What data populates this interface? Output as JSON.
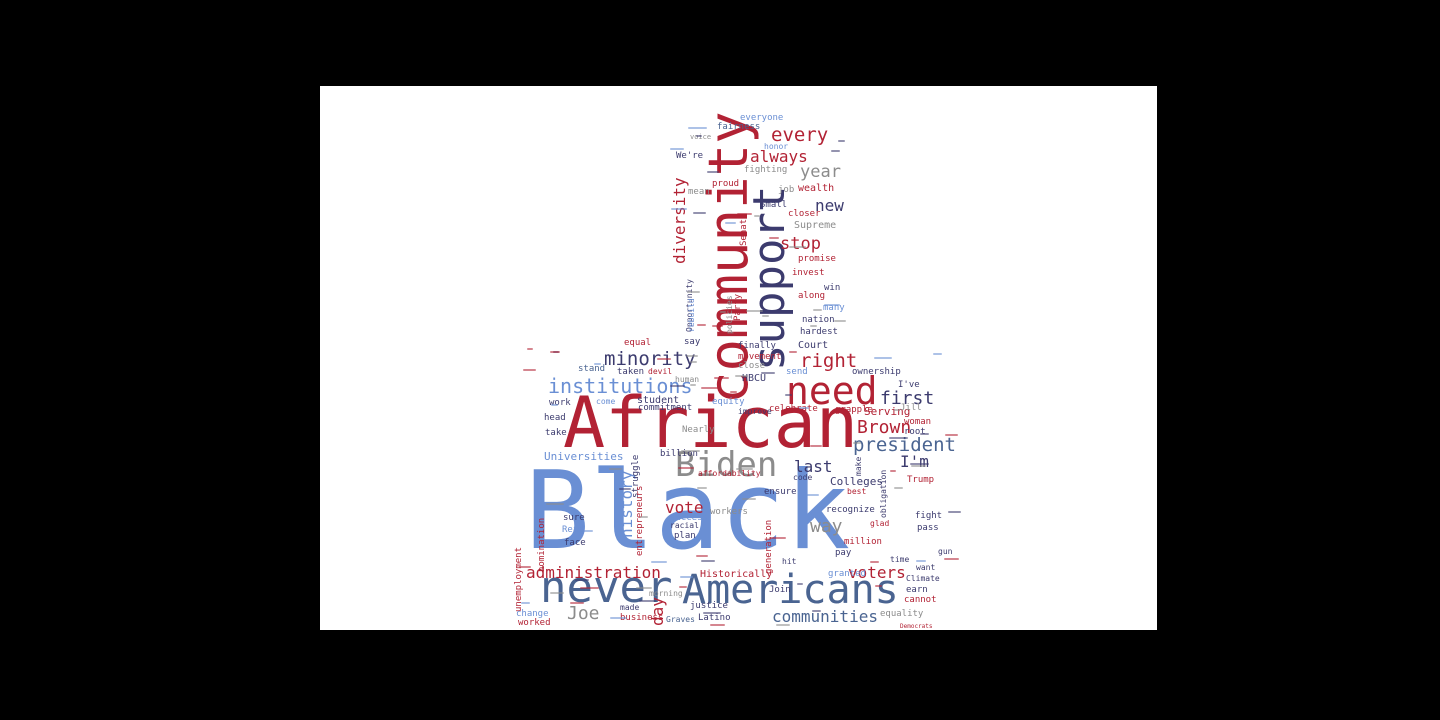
{
  "words": {
    "black": "Black",
    "african": "African",
    "community": "community",
    "support": "support",
    "never": "never",
    "americans": "Americans",
    "biden": "Biden",
    "need": "need",
    "institutions": "institutions",
    "minority": "minority",
    "president": "president",
    "brown": "Brown",
    "first": "first",
    "right": "right",
    "every": "every",
    "always": "always",
    "year": "year",
    "new": "new",
    "stop": "stop",
    "diversity": "diversity",
    "administration": "administration",
    "voters": "voters",
    "communities": "communities",
    "joe": "Joe",
    "day": "day",
    "history": "history",
    "vote": "vote",
    "way": "way",
    "last": "last",
    "im": "I'm",
    "colleges": "Colleges",
    "universities": "Universities",
    "historically": "Historically",
    "serving": "Serving",
    "hbcu": "HBCU",
    "court": "Court",
    "supreme": "Supreme",
    "small": "Small",
    "senate": "Senate",
    "wealth": "wealth",
    "job": "job",
    "proud": "proud",
    "fighting": "fighting",
    "fairness": "fairness",
    "everyone": "everyone",
    "were": "We're",
    "mean": "mean",
    "honor": "honor",
    "voice": "voice",
    "closer": "closer",
    "promise": "promise",
    "invest": "invest",
    "win": "win",
    "along": "along",
    "hardest": "hardest",
    "nation": "nation",
    "many": "many",
    "finally": "finally",
    "movement": "movement",
    "close": "close",
    "send": "send",
    "ownership": "ownership",
    "ive": "I've",
    "jill": "Jill",
    "root": "root",
    "woman": "woman",
    "grapple": "grapple",
    "celebrate": "celebrate",
    "improve": "improve",
    "equity": "equity",
    "student": "student",
    "commitment": "commitment",
    "work": "work",
    "come": "come",
    "taken": "taken",
    "stand": "stand",
    "equal": "equal",
    "say": "say",
    "devil": "devil",
    "human": "human",
    "head": "head",
    "take": "take",
    "nearly": "Nearly",
    "billion": "billion",
    "justice": "justice",
    "struggle": "struggle",
    "entrepreneurs": "entrepreneurs",
    "sure": "sure",
    "read": "Read",
    "face": "face",
    "nomination": "nomination",
    "unemployment": "unemployment",
    "change": "change",
    "worked": "worked",
    "made": "made",
    "business": "business",
    "graves": "Graves",
    "latino": "Latino",
    "morning": "morning",
    "plan": "plan",
    "success": "success",
    "racial": "racial",
    "workers": "workers",
    "generation": "generation",
    "ensure": "ensure",
    "recognize": "recognize",
    "glad": "glad",
    "million": "million",
    "pay": "pay",
    "granted": "granted",
    "join": "Join",
    "hit": "hit",
    "best": "best",
    "trump": "Trump",
    "fight": "fight",
    "pass": "pass",
    "time": "time",
    "want": "want",
    "earn": "earn",
    "climate": "Climate",
    "cannot": "cannot",
    "equality": "equality",
    "gun": "gun",
    "code": "code",
    "make": "make",
    "obligation": "obligation",
    "affordability": "affordability",
    "opportunity": "Opportunity",
    "rebuild": "rebuild",
    "party": "Party",
    "policies": "policies",
    "democrats": "Democrats"
  },
  "colors": {
    "background": "#000000",
    "canvas": "#ffffff",
    "red": "#b22234",
    "navy": "#3c3b6e",
    "blue": "#6a8fd4",
    "grey": "#8c8c8c",
    "slate": "#4a6491"
  }
}
